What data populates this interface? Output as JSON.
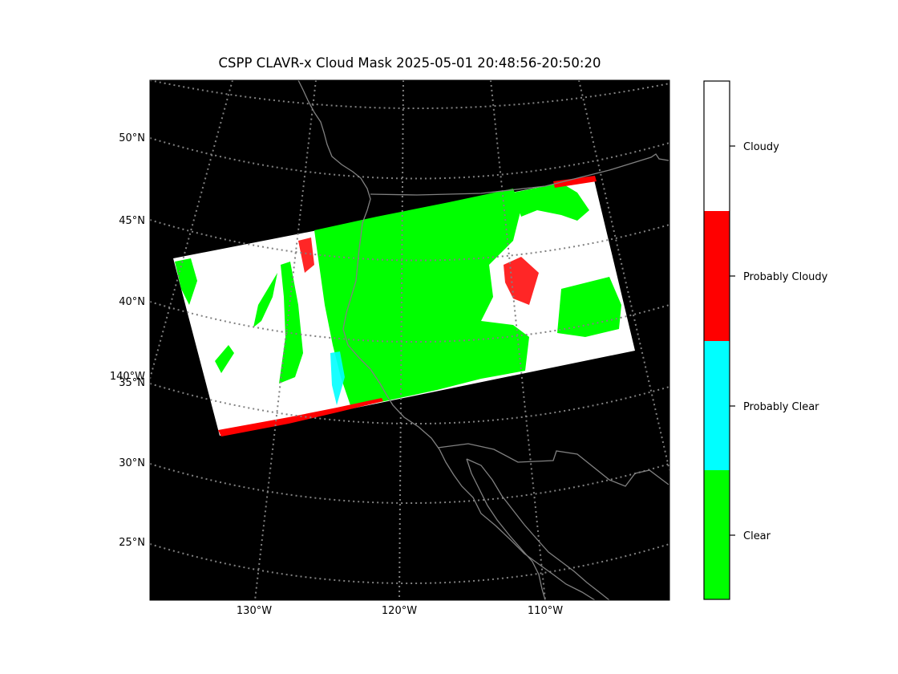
{
  "title": "CSPP CLAVR-x Cloud Mask 2025-05-01 20:48:56-20:50:20",
  "map": {
    "background_color": "#000000",
    "coastline_color": "#808080",
    "gridline_color": "#808080",
    "lat_labels": [
      "50°N",
      "45°N",
      "40°N",
      "35°N",
      "30°N",
      "25°N"
    ],
    "lon_labels": [
      "130°W",
      "120°W",
      "110°W"
    ],
    "extra_lon_label": "140°W"
  },
  "colorbar": {
    "categories": [
      {
        "label": "Cloudy",
        "color": "#ffffff"
      },
      {
        "label": "Probably Cloudy",
        "color": "#ff0000"
      },
      {
        "label": "Probably Clear",
        "color": "#00ffff"
      },
      {
        "label": "Clear",
        "color": "#00ff00"
      }
    ]
  }
}
